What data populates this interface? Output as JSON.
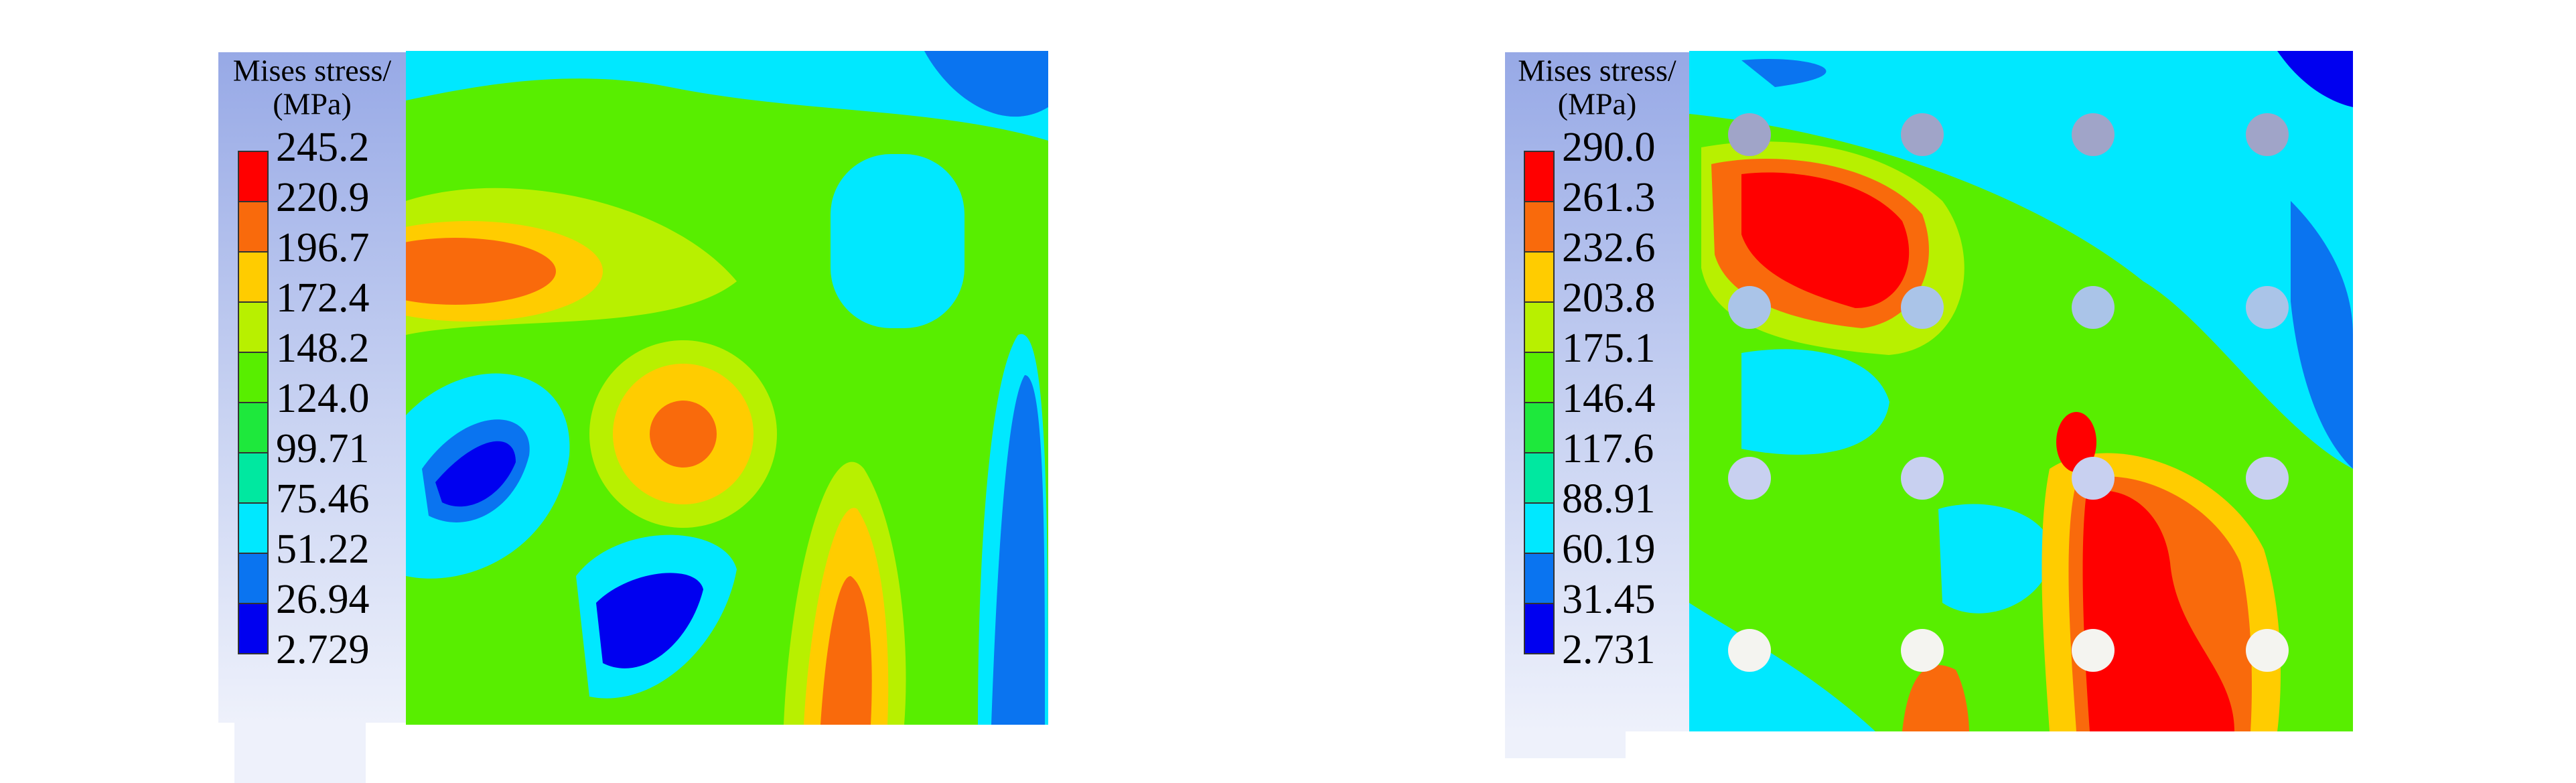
{
  "panels": [
    {
      "legend": {
        "title": "Mises stress/",
        "unit": "(MPa)",
        "levels": [
          "245.2",
          "220.9",
          "196.7",
          "172.4",
          "148.2",
          "124.0",
          "99.71",
          "75.46",
          "51.22",
          "26.94",
          "2.729"
        ]
      }
    },
    {
      "legend": {
        "title": "Mises stress/",
        "unit": "(MPa)",
        "levels": [
          "290.0",
          "261.3",
          "232.6",
          "203.8",
          "175.1",
          "146.4",
          "117.6",
          "88.91",
          "60.19",
          "31.45",
          "2.731"
        ]
      }
    }
  ],
  "legend_colors": [
    "#ff0000",
    "#f96a0c",
    "#ffcc00",
    "#b8f000",
    "#58ee00",
    "#1ee83c",
    "#00e8a0",
    "#00e8ff",
    "#0a74f0",
    "#0000f0"
  ]
}
